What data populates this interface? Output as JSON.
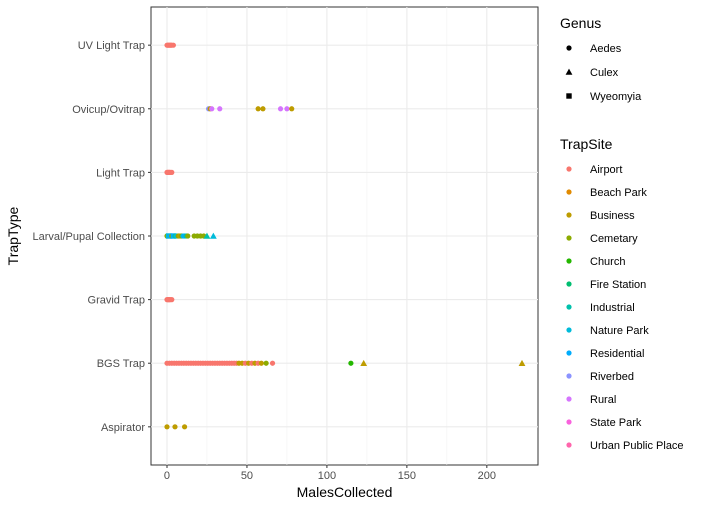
{
  "chart_data": {
    "type": "scatter",
    "xlabel": "MalesCollected",
    "ylabel": "TrapType",
    "xlim": [
      -10,
      232
    ],
    "x_ticks": [
      0,
      50,
      100,
      150,
      200
    ],
    "categories": [
      "Aspirator",
      "BGS Trap",
      "Gravid Trap",
      "Larval/Pupal Collection",
      "Light Trap",
      "Ovicup/Ovitrap",
      "UV Light Trap"
    ],
    "grid": true,
    "legend_placement": "right",
    "shape_legend": {
      "title": "Genus",
      "items": [
        {
          "label": "Aedes",
          "shape": "circle"
        },
        {
          "label": "Culex",
          "shape": "triangle"
        },
        {
          "label": "Wyeomyia",
          "shape": "square"
        }
      ]
    },
    "color_legend": {
      "title": "TrapSite",
      "items": [
        {
          "label": "Airport",
          "color": "#F8766D"
        },
        {
          "label": "Beach Park",
          "color": "#E18A00"
        },
        {
          "label": "Business",
          "color": "#BE9C00"
        },
        {
          "label": "Cemetary",
          "color": "#8CAB00"
        },
        {
          "label": "Church",
          "color": "#24B700"
        },
        {
          "label": "Fire Station",
          "color": "#00BE70"
        },
        {
          "label": "Industrial",
          "color": "#00C1AB"
        },
        {
          "label": "Nature Park",
          "color": "#00BBDA"
        },
        {
          "label": "Residential",
          "color": "#00ACFC"
        },
        {
          "label": "Riverbed",
          "color": "#8B93FF"
        },
        {
          "label": "Rural",
          "color": "#D575FE"
        },
        {
          "label": "State Park",
          "color": "#F962DD"
        },
        {
          "label": "Urban Public Place",
          "color": "#FF65AC"
        }
      ]
    },
    "points": [
      {
        "trap": "UV Light Trap",
        "x": 0,
        "genus": "Aedes",
        "site": "Airport"
      },
      {
        "trap": "UV Light Trap",
        "x": 0.5,
        "genus": "Aedes",
        "site": "Airport"
      },
      {
        "trap": "UV Light Trap",
        "x": 1,
        "genus": "Aedes",
        "site": "Airport"
      },
      {
        "trap": "UV Light Trap",
        "x": 1.5,
        "genus": "Aedes",
        "site": "Airport"
      },
      {
        "trap": "UV Light Trap",
        "x": 2,
        "genus": "Aedes",
        "site": "Airport"
      },
      {
        "trap": "UV Light Trap",
        "x": 2.5,
        "genus": "Aedes",
        "site": "Airport"
      },
      {
        "trap": "UV Light Trap",
        "x": 3,
        "genus": "Aedes",
        "site": "Airport"
      },
      {
        "trap": "UV Light Trap",
        "x": 4,
        "genus": "Aedes",
        "site": "Airport"
      },
      {
        "trap": "Ovicup/Ovitrap",
        "x": 26,
        "genus": "Aedes",
        "site": "Riverbed"
      },
      {
        "trap": "Ovicup/Ovitrap",
        "x": 27,
        "genus": "Aedes",
        "site": "Business"
      },
      {
        "trap": "Ovicup/Ovitrap",
        "x": 28,
        "genus": "Aedes",
        "site": "Rural"
      },
      {
        "trap": "Ovicup/Ovitrap",
        "x": 33,
        "genus": "Aedes",
        "site": "Rural"
      },
      {
        "trap": "Ovicup/Ovitrap",
        "x": 57,
        "genus": "Aedes",
        "site": "Business"
      },
      {
        "trap": "Ovicup/Ovitrap",
        "x": 60,
        "genus": "Aedes",
        "site": "Business"
      },
      {
        "trap": "Ovicup/Ovitrap",
        "x": 71,
        "genus": "Aedes",
        "site": "Rural"
      },
      {
        "trap": "Ovicup/Ovitrap",
        "x": 75,
        "genus": "Aedes",
        "site": "Rural"
      },
      {
        "trap": "Ovicup/Ovitrap",
        "x": 78,
        "genus": "Aedes",
        "site": "Business"
      },
      {
        "trap": "Light Trap",
        "x": 0,
        "genus": "Aedes",
        "site": "Airport"
      },
      {
        "trap": "Light Trap",
        "x": 0.5,
        "genus": "Aedes",
        "site": "Airport"
      },
      {
        "trap": "Light Trap",
        "x": 1,
        "genus": "Aedes",
        "site": "Airport"
      },
      {
        "trap": "Light Trap",
        "x": 1.5,
        "genus": "Aedes",
        "site": "Airport"
      },
      {
        "trap": "Light Trap",
        "x": 2,
        "genus": "Aedes",
        "site": "Airport"
      },
      {
        "trap": "Light Trap",
        "x": 3,
        "genus": "Aedes",
        "site": "Airport"
      },
      {
        "trap": "Larval/Pupal Collection",
        "x": 0,
        "genus": "Aedes",
        "site": "Cemetary"
      },
      {
        "trap": "Larval/Pupal Collection",
        "x": 1,
        "genus": "Wyeomyia",
        "site": "Nature Park"
      },
      {
        "trap": "Larval/Pupal Collection",
        "x": 2,
        "genus": "Aedes",
        "site": "Residential"
      },
      {
        "trap": "Larval/Pupal Collection",
        "x": 3,
        "genus": "Aedes",
        "site": "Cemetary"
      },
      {
        "trap": "Larval/Pupal Collection",
        "x": 4,
        "genus": "Wyeomyia",
        "site": "Residential"
      },
      {
        "trap": "Larval/Pupal Collection",
        "x": 5,
        "genus": "Aedes",
        "site": "Industrial"
      },
      {
        "trap": "Larval/Pupal Collection",
        "x": 6,
        "genus": "Aedes",
        "site": "Nature Park"
      },
      {
        "trap": "Larval/Pupal Collection",
        "x": 7,
        "genus": "Aedes",
        "site": "Cemetary"
      },
      {
        "trap": "Larval/Pupal Collection",
        "x": 8,
        "genus": "Aedes",
        "site": "Business"
      },
      {
        "trap": "Larval/Pupal Collection",
        "x": 9,
        "genus": "Aedes",
        "site": "Cemetary"
      },
      {
        "trap": "Larval/Pupal Collection",
        "x": 10,
        "genus": "Aedes",
        "site": "Nature Park"
      },
      {
        "trap": "Larval/Pupal Collection",
        "x": 11,
        "genus": "Aedes",
        "site": "Residential"
      },
      {
        "trap": "Larval/Pupal Collection",
        "x": 12,
        "genus": "Aedes",
        "site": "Industrial"
      },
      {
        "trap": "Larval/Pupal Collection",
        "x": 13,
        "genus": "Aedes",
        "site": "Cemetary"
      },
      {
        "trap": "Larval/Pupal Collection",
        "x": 17,
        "genus": "Aedes",
        "site": "Cemetary"
      },
      {
        "trap": "Larval/Pupal Collection",
        "x": 19,
        "genus": "Aedes",
        "site": "Cemetary"
      },
      {
        "trap": "Larval/Pupal Collection",
        "x": 21,
        "genus": "Aedes",
        "site": "Cemetary"
      },
      {
        "trap": "Larval/Pupal Collection",
        "x": 23,
        "genus": "Aedes",
        "site": "Cemetary"
      },
      {
        "trap": "Larval/Pupal Collection",
        "x": 25,
        "genus": "Culex",
        "site": "Industrial"
      },
      {
        "trap": "Larval/Pupal Collection",
        "x": 29,
        "genus": "Culex",
        "site": "Nature Park"
      },
      {
        "trap": "Gravid Trap",
        "x": 0,
        "genus": "Aedes",
        "site": "Airport"
      },
      {
        "trap": "Gravid Trap",
        "x": 0.5,
        "genus": "Aedes",
        "site": "Airport"
      },
      {
        "trap": "Gravid Trap",
        "x": 1,
        "genus": "Aedes",
        "site": "Airport"
      },
      {
        "trap": "Gravid Trap",
        "x": 1.5,
        "genus": "Aedes",
        "site": "Airport"
      },
      {
        "trap": "Gravid Trap",
        "x": 2,
        "genus": "Aedes",
        "site": "Airport"
      },
      {
        "trap": "Gravid Trap",
        "x": 3,
        "genus": "Aedes",
        "site": "Airport"
      },
      {
        "trap": "BGS Trap",
        "x": 0,
        "genus": "Aedes",
        "site": "Airport"
      },
      {
        "trap": "BGS Trap",
        "x": 1.5,
        "genus": "Aedes",
        "site": "Airport"
      },
      {
        "trap": "BGS Trap",
        "x": 3,
        "genus": "Aedes",
        "site": "Airport"
      },
      {
        "trap": "BGS Trap",
        "x": 4.5,
        "genus": "Aedes",
        "site": "Airport"
      },
      {
        "trap": "BGS Trap",
        "x": 6,
        "genus": "Aedes",
        "site": "Airport"
      },
      {
        "trap": "BGS Trap",
        "x": 7.5,
        "genus": "Aedes",
        "site": "Airport"
      },
      {
        "trap": "BGS Trap",
        "x": 9,
        "genus": "Aedes",
        "site": "Airport"
      },
      {
        "trap": "BGS Trap",
        "x": 10.5,
        "genus": "Aedes",
        "site": "Airport"
      },
      {
        "trap": "BGS Trap",
        "x": 12,
        "genus": "Aedes",
        "site": "Airport"
      },
      {
        "trap": "BGS Trap",
        "x": 13.5,
        "genus": "Aedes",
        "site": "Airport"
      },
      {
        "trap": "BGS Trap",
        "x": 15,
        "genus": "Aedes",
        "site": "Airport"
      },
      {
        "trap": "BGS Trap",
        "x": 16.5,
        "genus": "Aedes",
        "site": "Airport"
      },
      {
        "trap": "BGS Trap",
        "x": 18,
        "genus": "Aedes",
        "site": "Airport"
      },
      {
        "trap": "BGS Trap",
        "x": 19.5,
        "genus": "Aedes",
        "site": "Airport"
      },
      {
        "trap": "BGS Trap",
        "x": 21,
        "genus": "Aedes",
        "site": "Airport"
      },
      {
        "trap": "BGS Trap",
        "x": 22.5,
        "genus": "Aedes",
        "site": "Airport"
      },
      {
        "trap": "BGS Trap",
        "x": 24,
        "genus": "Aedes",
        "site": "Airport"
      },
      {
        "trap": "BGS Trap",
        "x": 25.5,
        "genus": "Aedes",
        "site": "Airport"
      },
      {
        "trap": "BGS Trap",
        "x": 27,
        "genus": "Aedes",
        "site": "Airport"
      },
      {
        "trap": "BGS Trap",
        "x": 28.5,
        "genus": "Aedes",
        "site": "Airport"
      },
      {
        "trap": "BGS Trap",
        "x": 30,
        "genus": "Aedes",
        "site": "Airport"
      },
      {
        "trap": "BGS Trap",
        "x": 31.5,
        "genus": "Aedes",
        "site": "Airport"
      },
      {
        "trap": "BGS Trap",
        "x": 33,
        "genus": "Aedes",
        "site": "Airport"
      },
      {
        "trap": "BGS Trap",
        "x": 34.5,
        "genus": "Aedes",
        "site": "Airport"
      },
      {
        "trap": "BGS Trap",
        "x": 36,
        "genus": "Aedes",
        "site": "Airport"
      },
      {
        "trap": "BGS Trap",
        "x": 37.5,
        "genus": "Aedes",
        "site": "Airport"
      },
      {
        "trap": "BGS Trap",
        "x": 39,
        "genus": "Aedes",
        "site": "Airport"
      },
      {
        "trap": "BGS Trap",
        "x": 40.5,
        "genus": "Aedes",
        "site": "Airport"
      },
      {
        "trap": "BGS Trap",
        "x": 42,
        "genus": "Aedes",
        "site": "Airport"
      },
      {
        "trap": "BGS Trap",
        "x": 43.5,
        "genus": "Aedes",
        "site": "Airport"
      },
      {
        "trap": "BGS Trap",
        "x": 45,
        "genus": "Aedes",
        "site": "Business"
      },
      {
        "trap": "BGS Trap",
        "x": 47,
        "genus": "Aedes",
        "site": "Business"
      },
      {
        "trap": "BGS Trap",
        "x": 49,
        "genus": "Aedes",
        "site": "Airport"
      },
      {
        "trap": "BGS Trap",
        "x": 51,
        "genus": "Aedes",
        "site": "Business"
      },
      {
        "trap": "BGS Trap",
        "x": 53,
        "genus": "Aedes",
        "site": "Airport"
      },
      {
        "trap": "BGS Trap",
        "x": 55,
        "genus": "Aedes",
        "site": "Business"
      },
      {
        "trap": "BGS Trap",
        "x": 57,
        "genus": "Aedes",
        "site": "Airport"
      },
      {
        "trap": "BGS Trap",
        "x": 59,
        "genus": "Aedes",
        "site": "Business"
      },
      {
        "trap": "BGS Trap",
        "x": 62,
        "genus": "Aedes",
        "site": "Cemetary"
      },
      {
        "trap": "BGS Trap",
        "x": 66,
        "genus": "Aedes",
        "site": "Airport"
      },
      {
        "trap": "BGS Trap",
        "x": 115,
        "genus": "Aedes",
        "site": "Church"
      },
      {
        "trap": "BGS Trap",
        "x": 123,
        "genus": "Culex",
        "site": "Business"
      },
      {
        "trap": "BGS Trap",
        "x": 222,
        "genus": "Culex",
        "site": "Business"
      },
      {
        "trap": "Aspirator",
        "x": 0,
        "genus": "Aedes",
        "site": "Business"
      },
      {
        "trap": "Aspirator",
        "x": 5,
        "genus": "Aedes",
        "site": "Business"
      },
      {
        "trap": "Aspirator",
        "x": 11,
        "genus": "Aedes",
        "site": "Business"
      }
    ]
  }
}
